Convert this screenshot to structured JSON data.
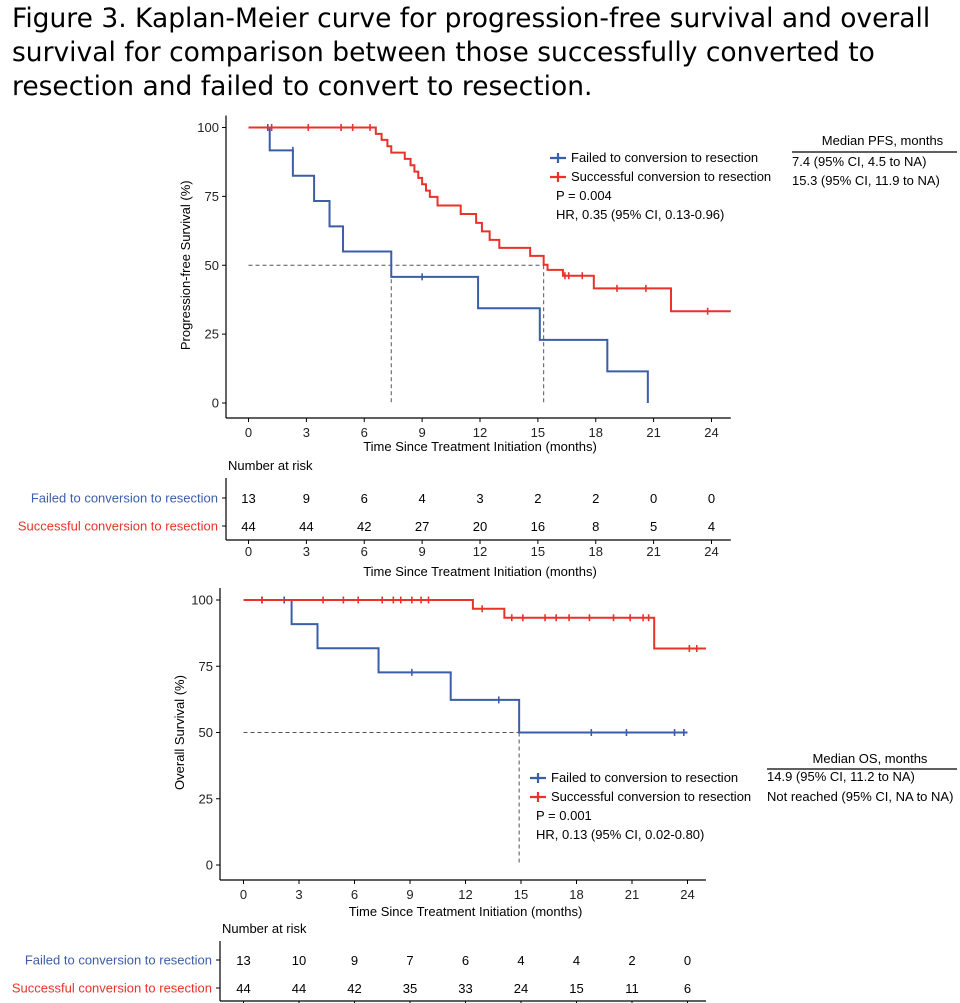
{
  "figure_title_lines": [
    "Figure 3. Kaplan-Meier curve for progression-free survival and overall",
    "survival for comparison between those successfully converted to",
    "resection and failed to convert to resection."
  ],
  "colors": {
    "failed": "#3b5ea8",
    "successful": "#e8322a",
    "axis": "#000000",
    "dashed": "#555555"
  },
  "chart_data": [
    {
      "type": "line",
      "title": "Progression-free survival",
      "xlabel": "Time Since Treatment Initiation (months)",
      "ylabel": "Progression-free Survival (%)",
      "xlim": [
        -1,
        25
      ],
      "ylim": [
        0,
        100
      ],
      "xticks": [
        0,
        3,
        6,
        9,
        12,
        15,
        18,
        21,
        24
      ],
      "yticks": [
        0,
        25,
        50,
        75,
        100
      ],
      "median_line": 50,
      "medians": [
        7.4,
        15.3
      ],
      "series": [
        {
          "name": "Failed to conversion to resection",
          "key": "failed",
          "steps": [
            [
              0,
              100
            ],
            [
              1.1,
              91.7
            ],
            [
              2.3,
              82.5
            ],
            [
              3.4,
              73.3
            ],
            [
              4.2,
              64.1
            ],
            [
              4.9,
              55
            ],
            [
              7.4,
              45.8
            ],
            [
              11.9,
              34.4
            ],
            [
              15.1,
              22.9
            ],
            [
              18.6,
              11.5
            ],
            [
              20.7,
              0
            ]
          ],
          "censors": [
            [
              1.0,
              100
            ],
            [
              2.3,
              91.7
            ],
            [
              9.0,
              45.8
            ]
          ]
        },
        {
          "name": "Successful conversion to resection",
          "key": "successful",
          "steps": [
            [
              0,
              100
            ],
            [
              6.6,
              97.7
            ],
            [
              6.9,
              95.5
            ],
            [
              7.2,
              93.2
            ],
            [
              7.4,
              90.9
            ],
            [
              8.1,
              88.6
            ],
            [
              8.4,
              86.3
            ],
            [
              8.6,
              84
            ],
            [
              8.8,
              81.7
            ],
            [
              9.0,
              79.4
            ],
            [
              9.2,
              77.1
            ],
            [
              9.4,
              74.8
            ],
            [
              9.8,
              71.7
            ],
            [
              11.0,
              68.6
            ],
            [
              11.8,
              65.4
            ],
            [
              12.1,
              62.3
            ],
            [
              12.5,
              59.2
            ],
            [
              13.0,
              56.3
            ],
            [
              14.6,
              53.4
            ],
            [
              15.3,
              50.2
            ],
            [
              15.5,
              48.3
            ],
            [
              16.3,
              46.2
            ],
            [
              17.9,
              41.6
            ],
            [
              21.9,
              33.3
            ]
          ],
          "censors": [
            [
              1.2,
              100
            ],
            [
              3.1,
              100
            ],
            [
              4.8,
              100
            ],
            [
              5.4,
              100
            ],
            [
              6.3,
              100
            ],
            [
              16.4,
              46.2
            ],
            [
              16.6,
              46.2
            ],
            [
              17.3,
              46.2
            ],
            [
              19.1,
              41.6
            ],
            [
              20.6,
              41.6
            ],
            [
              23.8,
              33.3
            ]
          ]
        }
      ],
      "legend": {
        "entries": [
          "Failed to conversion to resection",
          "Successful conversion to resection"
        ],
        "p_value": "P = 0.004",
        "hr": "HR, 0.35 (95% CI, 0.13-0.96)"
      },
      "median_table": {
        "header": "Median PFS, months",
        "rows": [
          "7.4 (95% CI, 4.5 to NA)",
          "15.3 (95% CI, 11.9 to NA)"
        ]
      },
      "risk_table": {
        "title": "Number at risk",
        "xlabel": "Time Since Treatment Initiation (months)",
        "rows": [
          {
            "label": "Failed to conversion to resection",
            "key": "failed",
            "values": [
              13,
              9,
              6,
              4,
              3,
              2,
              2,
              0,
              0
            ]
          },
          {
            "label": "Successful conversion to resection",
            "key": "successful",
            "values": [
              44,
              44,
              42,
              27,
              20,
              16,
              8,
              5,
              4
            ]
          }
        ]
      }
    },
    {
      "type": "line",
      "title": "Overall survival",
      "xlabel": "Time Since Treatment Initiation (months)",
      "ylabel": "Overall Survival (%)",
      "xlim": [
        -1,
        25
      ],
      "ylim": [
        0,
        100
      ],
      "xticks": [
        0,
        3,
        6,
        9,
        12,
        15,
        18,
        21,
        24
      ],
      "yticks": [
        0,
        25,
        50,
        75,
        100
      ],
      "median_line": 50,
      "medians": [
        14.9
      ],
      "series": [
        {
          "name": "Failed to conversion to resection",
          "key": "failed",
          "steps": [
            [
              0,
              100
            ],
            [
              2.6,
              90.9
            ],
            [
              4.0,
              81.8
            ],
            [
              7.3,
              72.7
            ],
            [
              11.2,
              62.3
            ],
            [
              14.9,
              50
            ]
          ],
          "censors": [
            [
              1.0,
              100
            ],
            [
              2.2,
              100
            ],
            [
              9.1,
              72.7
            ],
            [
              13.8,
              62.3
            ],
            [
              18.8,
              50
            ],
            [
              20.7,
              50
            ],
            [
              23.3,
              50
            ],
            [
              23.8,
              50
            ]
          ],
          "end_x": 24.0
        },
        {
          "name": "Successful conversion to resection",
          "key": "successful",
          "steps": [
            [
              0,
              100
            ],
            [
              12.4,
              96.7
            ],
            [
              14.1,
              93.3
            ],
            [
              22.2,
              81.7
            ]
          ],
          "censors": [
            [
              1.0,
              100
            ],
            [
              4.3,
              100
            ],
            [
              5.4,
              100
            ],
            [
              6.2,
              100
            ],
            [
              7.5,
              100
            ],
            [
              8.1,
              100
            ],
            [
              8.5,
              100
            ],
            [
              9.1,
              100
            ],
            [
              9.6,
              100
            ],
            [
              10.0,
              100
            ],
            [
              12.9,
              96.7
            ],
            [
              14.5,
              93.3
            ],
            [
              15.1,
              93.3
            ],
            [
              16.3,
              93.3
            ],
            [
              16.9,
              93.3
            ],
            [
              17.6,
              93.3
            ],
            [
              18.7,
              93.3
            ],
            [
              20.0,
              93.3
            ],
            [
              20.9,
              93.3
            ],
            [
              21.6,
              93.3
            ],
            [
              21.9,
              93.3
            ],
            [
              24.1,
              81.7
            ],
            [
              24.5,
              81.7
            ]
          ],
          "end_x": 25.0
        }
      ],
      "legend": {
        "entries": [
          "Failed to conversion to resection",
          "Successful conversion to resection"
        ],
        "p_value": "P = 0.001",
        "hr": "HR, 0.13 (95% CI, 0.02-0.80)"
      },
      "median_table": {
        "header": "Median OS, months",
        "rows": [
          "14.9 (95% CI, 11.2 to NA)",
          "Not reached (95% CI, NA to NA)"
        ]
      },
      "risk_table": {
        "title": "Number at risk",
        "xlabel": "Time Since Treatment Initiation (months)",
        "rows": [
          {
            "label": "Failed to conversion to resection",
            "key": "failed",
            "values": [
              13,
              10,
              9,
              7,
              6,
              4,
              4,
              2,
              0
            ]
          },
          {
            "label": "Successful conversion to resection",
            "key": "successful",
            "values": [
              44,
              44,
              42,
              35,
              33,
              24,
              15,
              11,
              6
            ]
          }
        ]
      }
    }
  ]
}
